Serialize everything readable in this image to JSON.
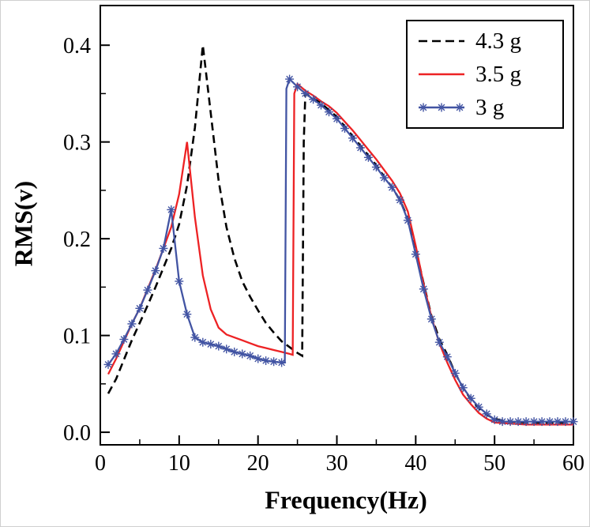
{
  "chart_data": {
    "type": "line",
    "title": "",
    "xlabel": "Frequency(Hz)",
    "ylabel": "RMS(v)",
    "xlim": [
      0,
      60
    ],
    "ylim": [
      -0.013,
      0.441
    ],
    "grid": false,
    "legend_position": "top-right",
    "x_ticks": [
      0,
      10,
      20,
      30,
      40,
      50,
      60
    ],
    "x_tick_labels": [
      "0",
      "10",
      "20",
      "30",
      "40",
      "50",
      "60"
    ],
    "x_minor": [
      5,
      15,
      25,
      35,
      45,
      55
    ],
    "y_ticks": [
      0.0,
      0.1,
      0.2,
      0.3,
      0.4
    ],
    "y_tick_labels": [
      "0.0",
      "0.1",
      "0.2",
      "0.3",
      "0.4"
    ],
    "y_minor": [
      0.05,
      0.15,
      0.25,
      0.35
    ],
    "series": [
      {
        "name": "4.3 g",
        "color": "#000000",
        "style": "dashed",
        "marker": "none",
        "points": [
          [
            1,
            0.04
          ],
          [
            2,
            0.055
          ],
          [
            3,
            0.075
          ],
          [
            4,
            0.095
          ],
          [
            5,
            0.113
          ],
          [
            6,
            0.131
          ],
          [
            7,
            0.15
          ],
          [
            8,
            0.17
          ],
          [
            9,
            0.19
          ],
          [
            10,
            0.215
          ],
          [
            11,
            0.255
          ],
          [
            12,
            0.315
          ],
          [
            13,
            0.4
          ],
          [
            14,
            0.33
          ],
          [
            15,
            0.26
          ],
          [
            16,
            0.212
          ],
          [
            17,
            0.18
          ],
          [
            18,
            0.156
          ],
          [
            19,
            0.14
          ],
          [
            20,
            0.126
          ],
          [
            21,
            0.113
          ],
          [
            22,
            0.103
          ],
          [
            23,
            0.094
          ],
          [
            24,
            0.088
          ],
          [
            25,
            0.082
          ],
          [
            25.6,
            0.079
          ],
          [
            25.8,
            0.3
          ],
          [
            26,
            0.35
          ],
          [
            27,
            0.345
          ],
          [
            28,
            0.34
          ],
          [
            29,
            0.333
          ],
          [
            30,
            0.326
          ],
          [
            31,
            0.316
          ],
          [
            32,
            0.306
          ],
          [
            33,
            0.296
          ],
          [
            34,
            0.286
          ],
          [
            35,
            0.276
          ],
          [
            36,
            0.264
          ],
          [
            37,
            0.253
          ],
          [
            38,
            0.24
          ],
          [
            39,
            0.221
          ],
          [
            40,
            0.19
          ],
          [
            41,
            0.154
          ],
          [
            42,
            0.12
          ],
          [
            43,
            0.096
          ],
          [
            44,
            0.08
          ],
          [
            45,
            0.061
          ],
          [
            46,
            0.046
          ],
          [
            47,
            0.034
          ],
          [
            48,
            0.025
          ],
          [
            49,
            0.018
          ],
          [
            50,
            0.014
          ],
          [
            51,
            0.012
          ],
          [
            52,
            0.011
          ],
          [
            54,
            0.01
          ],
          [
            56,
            0.01
          ],
          [
            58,
            0.01
          ],
          [
            60,
            0.01
          ]
        ]
      },
      {
        "name": "3.5 g",
        "color": "#ed2224",
        "style": "solid",
        "marker": "none",
        "points": [
          [
            1,
            0.06
          ],
          [
            2,
            0.076
          ],
          [
            3,
            0.094
          ],
          [
            4,
            0.112
          ],
          [
            5,
            0.128
          ],
          [
            6,
            0.148
          ],
          [
            7,
            0.168
          ],
          [
            8,
            0.19
          ],
          [
            9,
            0.212
          ],
          [
            10,
            0.246
          ],
          [
            11,
            0.3
          ],
          [
            12,
            0.222
          ],
          [
            13,
            0.162
          ],
          [
            14,
            0.127
          ],
          [
            15,
            0.108
          ],
          [
            16,
            0.101
          ],
          [
            17,
            0.098
          ],
          [
            18,
            0.095
          ],
          [
            19,
            0.092
          ],
          [
            20,
            0.089
          ],
          [
            21,
            0.087
          ],
          [
            22,
            0.085
          ],
          [
            23,
            0.083
          ],
          [
            24,
            0.081
          ],
          [
            24.4,
            0.08
          ],
          [
            24.6,
            0.35
          ],
          [
            25,
            0.36
          ],
          [
            26,
            0.353
          ],
          [
            27,
            0.348
          ],
          [
            28,
            0.342
          ],
          [
            29,
            0.337
          ],
          [
            30,
            0.33
          ],
          [
            31,
            0.321
          ],
          [
            32,
            0.312
          ],
          [
            33,
            0.302
          ],
          [
            34,
            0.292
          ],
          [
            35,
            0.282
          ],
          [
            36,
            0.271
          ],
          [
            37,
            0.26
          ],
          [
            38,
            0.247
          ],
          [
            39,
            0.228
          ],
          [
            40,
            0.193
          ],
          [
            41,
            0.153
          ],
          [
            42,
            0.119
          ],
          [
            43,
            0.092
          ],
          [
            44,
            0.072
          ],
          [
            45,
            0.054
          ],
          [
            46,
            0.039
          ],
          [
            47,
            0.029
          ],
          [
            48,
            0.02
          ],
          [
            49,
            0.014
          ],
          [
            50,
            0.01
          ],
          [
            52,
            0.009
          ],
          [
            54,
            0.008
          ],
          [
            56,
            0.008
          ],
          [
            58,
            0.008
          ],
          [
            60,
            0.008
          ]
        ]
      },
      {
        "name": "3 g",
        "color": "#4254a3",
        "style": "solid",
        "marker": "asterisk",
        "points": [
          [
            1,
            0.07
          ],
          [
            2,
            0.081
          ],
          [
            3,
            0.096
          ],
          [
            4,
            0.112
          ],
          [
            5,
            0.128
          ],
          [
            6,
            0.147
          ],
          [
            7,
            0.167
          ],
          [
            8,
            0.19
          ],
          [
            9,
            0.23
          ],
          [
            10,
            0.156
          ],
          [
            11,
            0.122
          ],
          [
            12,
            0.098
          ],
          [
            13,
            0.093
          ],
          [
            14,
            0.091
          ],
          [
            15,
            0.089
          ],
          [
            16,
            0.086
          ],
          [
            17,
            0.083
          ],
          [
            18,
            0.081
          ],
          [
            19,
            0.079
          ],
          [
            20,
            0.076
          ],
          [
            21,
            0.074
          ],
          [
            22,
            0.073
          ],
          [
            23,
            0.072
          ],
          [
            23.4,
            0.072
          ],
          [
            23.6,
            0.355
          ],
          [
            24,
            0.365
          ],
          [
            25,
            0.357
          ],
          [
            26,
            0.35
          ],
          [
            27,
            0.344
          ],
          [
            28,
            0.338
          ],
          [
            29,
            0.331
          ],
          [
            30,
            0.324
          ],
          [
            31,
            0.314
          ],
          [
            32,
            0.304
          ],
          [
            33,
            0.294
          ],
          [
            34,
            0.284
          ],
          [
            35,
            0.274
          ],
          [
            36,
            0.263
          ],
          [
            37,
            0.253
          ],
          [
            38,
            0.24
          ],
          [
            39,
            0.219
          ],
          [
            40,
            0.184
          ],
          [
            41,
            0.148
          ],
          [
            42,
            0.117
          ],
          [
            43,
            0.093
          ],
          [
            44,
            0.078
          ],
          [
            45,
            0.061
          ],
          [
            46,
            0.046
          ],
          [
            47,
            0.035
          ],
          [
            48,
            0.026
          ],
          [
            49,
            0.019
          ],
          [
            50,
            0.013
          ],
          [
            51,
            0.011
          ],
          [
            52,
            0.011
          ],
          [
            53,
            0.011
          ],
          [
            54,
            0.011
          ],
          [
            55,
            0.011
          ],
          [
            56,
            0.011
          ],
          [
            57,
            0.011
          ],
          [
            58,
            0.011
          ],
          [
            59,
            0.011
          ],
          [
            60,
            0.011
          ]
        ]
      }
    ]
  }
}
